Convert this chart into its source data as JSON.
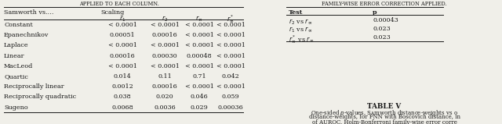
{
  "left_table": {
    "rows": [
      [
        "Constant",
        "< 0.0001",
        "< 0.0001",
        "< 0.0001",
        "< 0.0001"
      ],
      [
        "Epanechnikov",
        "0.00051",
        "0.00016",
        "< 0.0001",
        "< 0.0001"
      ],
      [
        "Laplace",
        "< 0.0001",
        "< 0.0001",
        "< 0.0001",
        "< 0.0001"
      ],
      [
        "Linear",
        "0.00016",
        "0.00030",
        "0.00048",
        "< 0.0001"
      ],
      [
        "MacLeod",
        "< 0.0001",
        "< 0.0001",
        "< 0.0001",
        "< 0.0001"
      ],
      [
        "Quartic",
        "0.014",
        "0.11",
        "0.71",
        "0.042"
      ],
      [
        "Reciprocally linear",
        "0.0012",
        "0.00016",
        "< 0.0001",
        "< 0.0001"
      ],
      [
        "Reciprocally quadratic",
        "0.038",
        "0.020",
        "0.046",
        "0.059"
      ],
      [
        "Sugeno",
        "0.0068",
        "0.0036",
        "0.029",
        "0.00036"
      ]
    ]
  },
  "right_table": {
    "rows": [
      [
        "r_2 vs r_inf",
        "0.00043"
      ],
      [
        "r_1 vs r_inf",
        "0.023"
      ],
      [
        "r_inf_star vs r_inf",
        "0.023"
      ]
    ]
  },
  "caption_title": "TABLE V",
  "cap_line1": "One-sided p-values, Samworth distance-weights vs o",
  "cap_line2": "distance-weights, for FNN with Boscovich distance, in",
  "cap_line3": "of AUROC. Holm-Bonferroni family-wise error corre",
  "top_caption_left": "APPLIED TO EACH COLUMN.",
  "top_caption_right": "FAMILY-WISE ERROR CORRECTION APPLIED.",
  "bg_color": "#f0efe9",
  "text_color": "#1a1a1a",
  "line_color": "#1a1a1a"
}
